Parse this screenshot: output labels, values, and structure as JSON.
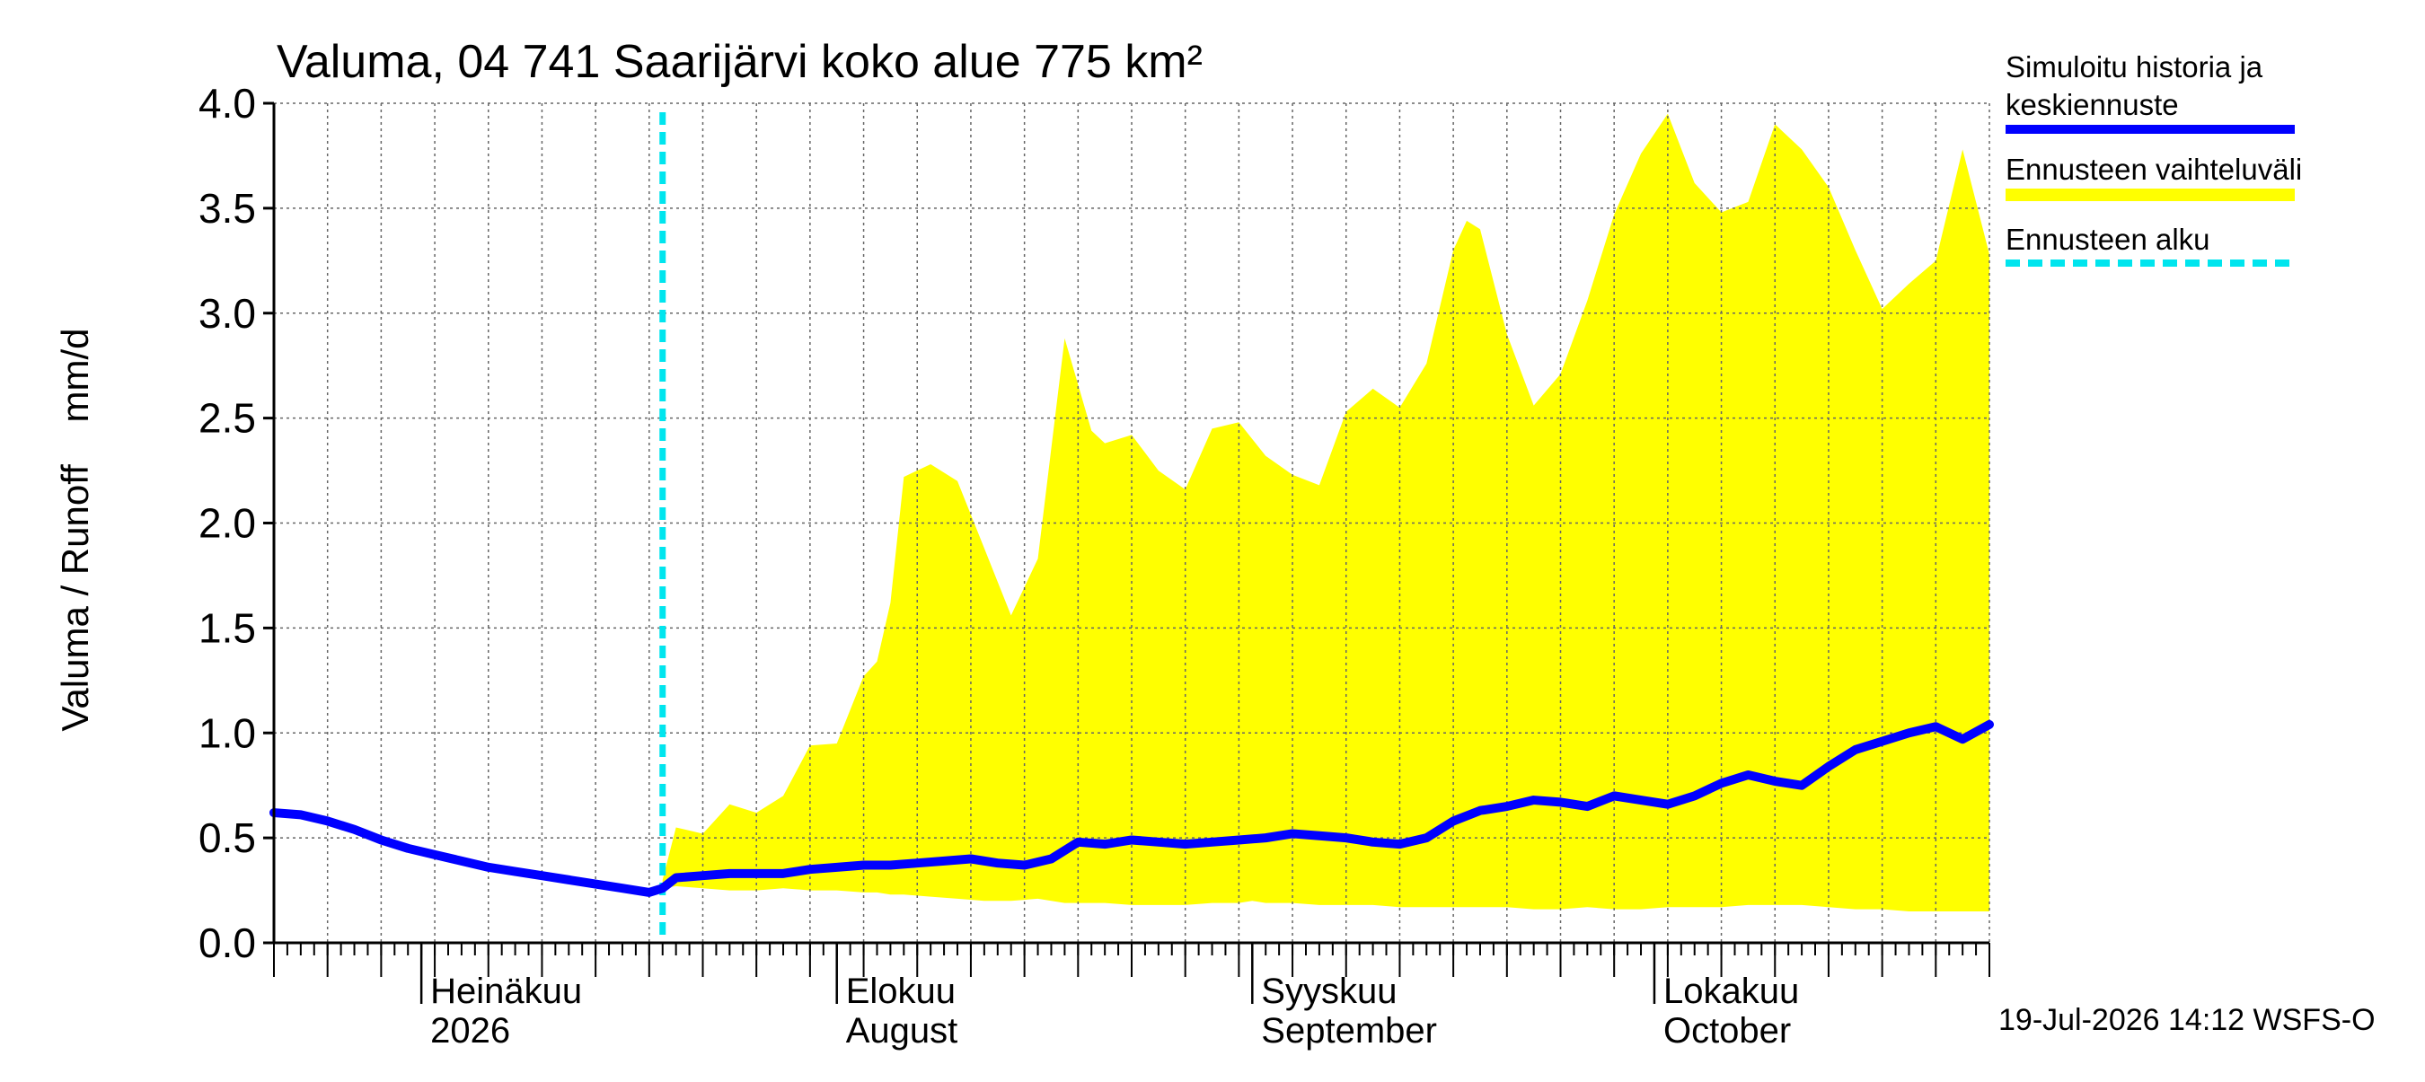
{
  "chart_data": {
    "type": "area",
    "title": "Valuma, 04 741 Saarijärvi koko alue 775 km²",
    "ylabel": "Valuma / Runoff    mm/d",
    "xlabel": "",
    "ylim": [
      0,
      4.0
    ],
    "yticks": [
      "0.0",
      "0.5",
      "1.0",
      "1.5",
      "2.0",
      "2.5",
      "3.0",
      "3.5",
      "4.0"
    ],
    "xlim": [
      "2026-06-20",
      "2026-10-26"
    ],
    "month_ticks": [
      {
        "date": "2026-07-01",
        "line1": "Heinäkuu",
        "line2": "2026"
      },
      {
        "date": "2026-08-01",
        "line1": "Elokuu",
        "line2": "August"
      },
      {
        "date": "2026-09-01",
        "line1": "Syyskuu",
        "line2": "September"
      },
      {
        "date": "2026-10-01",
        "line1": "Lokakuu",
        "line2": "October"
      }
    ],
    "grid": true,
    "forecast_start": "2026-07-19",
    "legend_position": "right",
    "legend": [
      {
        "label": "Simuloitu historia ja keskiennuste",
        "color": "#0000ff",
        "style": "solid"
      },
      {
        "label": "Ennusteen vaihteluväli",
        "color": "#ffff00",
        "style": "band"
      },
      {
        "label": "Ennusteen alku",
        "color": "#00e5ee",
        "style": "dashed"
      }
    ],
    "footer": "19-Jul-2026 14:12 WSFS-O",
    "series": [
      {
        "name": "Simuloitu historia ja keskiennuste",
        "color": "#0000ff",
        "x": [
          "2026-06-20",
          "2026-06-22",
          "2026-06-24",
          "2026-06-26",
          "2026-06-28",
          "2026-06-30",
          "2026-07-02",
          "2026-07-04",
          "2026-07-06",
          "2026-07-08",
          "2026-07-10",
          "2026-07-12",
          "2026-07-14",
          "2026-07-16",
          "2026-07-18",
          "2026-07-19",
          "2026-07-20",
          "2026-07-22",
          "2026-07-24",
          "2026-07-26",
          "2026-07-28",
          "2026-07-30",
          "2026-08-01",
          "2026-08-03",
          "2026-08-05",
          "2026-08-07",
          "2026-08-09",
          "2026-08-11",
          "2026-08-13",
          "2026-08-15",
          "2026-08-17",
          "2026-08-19",
          "2026-08-21",
          "2026-08-23",
          "2026-08-25",
          "2026-08-27",
          "2026-08-29",
          "2026-08-31",
          "2026-09-02",
          "2026-09-04",
          "2026-09-06",
          "2026-09-08",
          "2026-09-10",
          "2026-09-12",
          "2026-09-14",
          "2026-09-16",
          "2026-09-18",
          "2026-09-20",
          "2026-09-22",
          "2026-09-24",
          "2026-09-26",
          "2026-09-28",
          "2026-09-30",
          "2026-10-02",
          "2026-10-04",
          "2026-10-06",
          "2026-10-08",
          "2026-10-10",
          "2026-10-12",
          "2026-10-14",
          "2026-10-16",
          "2026-10-18",
          "2026-10-20",
          "2026-10-22",
          "2026-10-24",
          "2026-10-26"
        ],
        "values": [
          0.62,
          0.61,
          0.58,
          0.54,
          0.49,
          0.45,
          0.42,
          0.39,
          0.36,
          0.34,
          0.32,
          0.3,
          0.28,
          0.26,
          0.24,
          0.26,
          0.31,
          0.32,
          0.33,
          0.33,
          0.33,
          0.35,
          0.36,
          0.37,
          0.37,
          0.38,
          0.39,
          0.4,
          0.38,
          0.37,
          0.4,
          0.48,
          0.47,
          0.49,
          0.48,
          0.47,
          0.48,
          0.49,
          0.5,
          0.52,
          0.51,
          0.5,
          0.48,
          0.47,
          0.5,
          0.58,
          0.63,
          0.65,
          0.68,
          0.67,
          0.65,
          0.7,
          0.68,
          0.66,
          0.7,
          0.76,
          0.8,
          0.77,
          0.75,
          0.84,
          0.92,
          0.96,
          1.0,
          1.03,
          0.97,
          1.04
        ]
      }
    ],
    "band": {
      "name": "Ennusteen vaihteluväli",
      "color": "#ffff00",
      "x": [
        "2026-07-19",
        "2026-07-20",
        "2026-07-22",
        "2026-07-24",
        "2026-07-26",
        "2026-07-28",
        "2026-07-30",
        "2026-08-01",
        "2026-08-03",
        "2026-08-04",
        "2026-08-05",
        "2026-08-06",
        "2026-08-08",
        "2026-08-10",
        "2026-08-12",
        "2026-08-14",
        "2026-08-16",
        "2026-08-18",
        "2026-08-20",
        "2026-08-21",
        "2026-08-23",
        "2026-08-25",
        "2026-08-27",
        "2026-08-29",
        "2026-08-31",
        "2026-09-01",
        "2026-09-02",
        "2026-09-04",
        "2026-09-06",
        "2026-09-08",
        "2026-09-10",
        "2026-09-12",
        "2026-09-14",
        "2026-09-16",
        "2026-09-17",
        "2026-09-18",
        "2026-09-20",
        "2026-09-22",
        "2026-09-24",
        "2026-09-26",
        "2026-09-28",
        "2026-09-30",
        "2026-10-02",
        "2026-10-04",
        "2026-10-06",
        "2026-10-08",
        "2026-10-10",
        "2026-10-12",
        "2026-10-14",
        "2026-10-16",
        "2026-10-18",
        "2026-10-20",
        "2026-10-22",
        "2026-10-24",
        "2026-10-26"
      ],
      "upper": [
        0.3,
        0.55,
        0.52,
        0.66,
        0.62,
        0.7,
        0.94,
        0.95,
        1.27,
        1.34,
        1.62,
        2.22,
        2.28,
        2.2,
        1.88,
        1.56,
        1.83,
        2.88,
        2.44,
        2.38,
        2.42,
        2.25,
        2.16,
        2.45,
        2.48,
        2.4,
        2.32,
        2.23,
        2.18,
        2.53,
        2.64,
        2.55,
        2.76,
        3.3,
        3.44,
        3.4,
        2.9,
        2.56,
        2.71,
        3.06,
        3.47,
        3.76,
        3.95,
        3.62,
        3.48,
        3.53,
        3.9,
        3.78,
        3.6,
        3.3,
        3.02,
        3.14,
        3.25,
        3.78,
        3.28
      ],
      "lower": [
        0.26,
        0.27,
        0.26,
        0.25,
        0.25,
        0.26,
        0.25,
        0.25,
        0.24,
        0.24,
        0.23,
        0.23,
        0.22,
        0.21,
        0.2,
        0.2,
        0.21,
        0.19,
        0.19,
        0.19,
        0.18,
        0.18,
        0.18,
        0.19,
        0.19,
        0.2,
        0.19,
        0.19,
        0.18,
        0.18,
        0.18,
        0.17,
        0.17,
        0.17,
        0.17,
        0.17,
        0.17,
        0.16,
        0.16,
        0.17,
        0.16,
        0.16,
        0.17,
        0.17,
        0.17,
        0.18,
        0.18,
        0.18,
        0.17,
        0.16,
        0.16,
        0.15,
        0.15,
        0.15,
        0.15
      ]
    }
  }
}
